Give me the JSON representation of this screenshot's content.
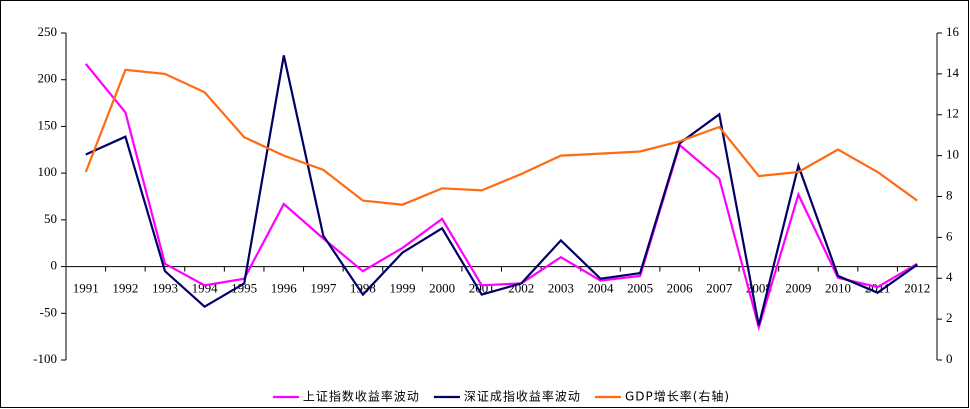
{
  "chart_data": {
    "type": "line",
    "categories": [
      "1991",
      "1992",
      "1993",
      "1994",
      "1995",
      "1996",
      "1997",
      "1998",
      "1999",
      "2000",
      "2001",
      "2002",
      "2003",
      "2004",
      "2005",
      "2006",
      "2007",
      "2008",
      "2009",
      "2010",
      "2011",
      "2012"
    ],
    "series": [
      {
        "name": "上证指数收益率波动",
        "color": "#ff00ff",
        "values": [
          217,
          165,
          3,
          -20,
          -13,
          67,
          30,
          -5,
          20,
          51,
          -20,
          -18,
          10,
          -15,
          -10,
          130,
          94,
          -65,
          77,
          -12,
          -22,
          3
        ]
      },
      {
        "name": "深证成指收益率波动",
        "color": "#000066",
        "values": [
          120,
          139,
          -5,
          -43,
          -18,
          226,
          33,
          -30,
          15,
          41,
          -30,
          -18,
          28,
          -13,
          -7,
          132,
          163,
          -63,
          108,
          -10,
          -28,
          2
        ]
      },
      {
        "name": "GDP增长率(右轴)",
        "color": "#ff6a13",
        "axis": "y2",
        "values": [
          9.2,
          14.2,
          14.0,
          13.1,
          10.9,
          10.0,
          9.3,
          7.8,
          7.6,
          8.4,
          8.3,
          9.1,
          10.0,
          10.1,
          10.2,
          10.7,
          11.4,
          9.0,
          9.2,
          10.3,
          9.2,
          7.8
        ]
      }
    ],
    "ylim": [
      -100,
      250
    ],
    "yticks": [
      -100,
      -50,
      0,
      50,
      100,
      150,
      200,
      250
    ],
    "y2lim": [
      0,
      16
    ],
    "y2ticks": [
      0,
      2,
      4,
      6,
      8,
      10,
      12,
      14,
      16
    ],
    "legend": "bottom"
  }
}
